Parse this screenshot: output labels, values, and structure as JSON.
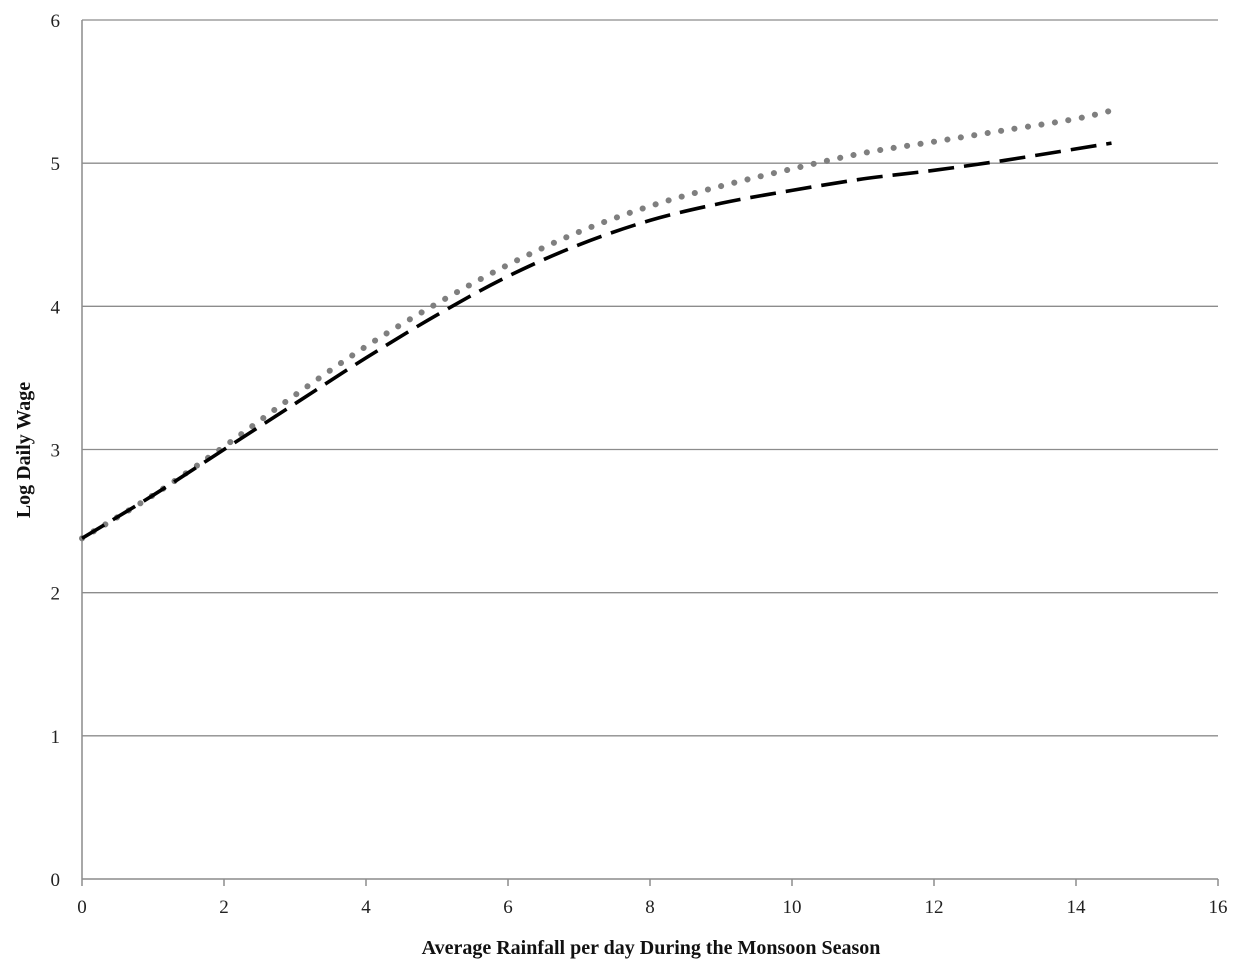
{
  "chart_data": {
    "type": "line",
    "title": "",
    "xlabel": "Average Rainfall per day During the Monsoon Season",
    "ylabel": "Log Daily Wage",
    "xlim": [
      0,
      16
    ],
    "ylim": [
      0,
      6
    ],
    "xticks": [
      "0",
      "2",
      "4",
      "6",
      "8",
      "10",
      "12",
      "14",
      "16"
    ],
    "yticks": [
      "0",
      "1",
      "2",
      "3",
      "4",
      "5",
      "6"
    ],
    "grid": "horizontal",
    "legend": "none",
    "series": [
      {
        "style": "dotted",
        "color": "#7f7f7f",
        "x": [
          0,
          1,
          2,
          3,
          4,
          5,
          6,
          7,
          8,
          9,
          10,
          11,
          12,
          13,
          14,
          14.6
        ],
        "y": [
          2.38,
          2.68,
          3.02,
          3.38,
          3.72,
          4.02,
          4.29,
          4.52,
          4.7,
          4.84,
          4.96,
          5.07,
          5.15,
          5.23,
          5.31,
          5.38
        ]
      },
      {
        "style": "dashed",
        "color": "#000000",
        "x": [
          0,
          1,
          2,
          3,
          4,
          5,
          6,
          7,
          8,
          9,
          10,
          11,
          12,
          13,
          14,
          14.5
        ],
        "y": [
          2.38,
          2.68,
          3.0,
          3.32,
          3.64,
          3.94,
          4.21,
          4.43,
          4.6,
          4.72,
          4.81,
          4.89,
          4.95,
          5.02,
          5.1,
          5.14
        ]
      }
    ]
  }
}
